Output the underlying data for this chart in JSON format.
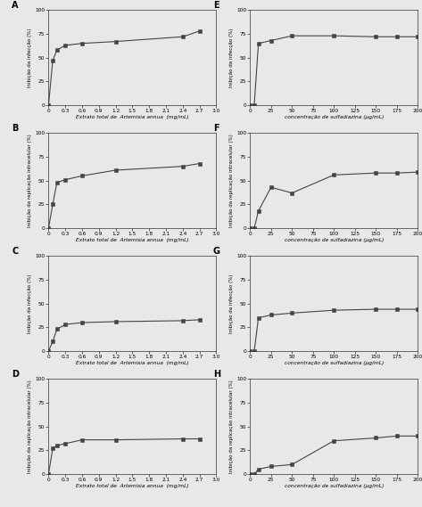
{
  "panels": [
    {
      "label": "A",
      "ylabel": "Inibição da infecção (%)",
      "xlabel": "Extrato total de  Artemisia annua  (mg/mL)",
      "x": [
        0.0,
        0.075,
        0.15,
        0.3,
        0.6,
        1.2,
        2.4,
        2.7
      ],
      "y": [
        0,
        47,
        58,
        63,
        65,
        67,
        72,
        78
      ],
      "xticks": [
        0.0,
        0.3,
        0.6,
        0.9,
        1.2,
        1.5,
        1.8,
        2.1,
        2.4,
        2.7,
        3.0
      ],
      "xtick_labels": [
        "0",
        "0.3",
        "0.6",
        "0.9",
        "1.2",
        "1.5",
        "1.8",
        "2.1",
        "2.4",
        "2.7",
        "3.0"
      ],
      "yticks": [
        0,
        25,
        50,
        75,
        100
      ],
      "xlim": [
        0,
        3.0
      ],
      "ylim": [
        0,
        100
      ]
    },
    {
      "label": "B",
      "ylabel": "Inibição da replicação intracelular (%)",
      "xlabel": "Extrato total de  Artemisia annua  (mg/mL)",
      "x": [
        0.0,
        0.075,
        0.15,
        0.3,
        0.6,
        1.2,
        2.4,
        2.7
      ],
      "y": [
        0,
        25,
        48,
        51,
        55,
        61,
        65,
        68
      ],
      "xticks": [
        0.0,
        0.3,
        0.6,
        0.9,
        1.2,
        1.5,
        1.8,
        2.1,
        2.4,
        2.7,
        3.0
      ],
      "xtick_labels": [
        "0",
        "0.3",
        "0.6",
        "0.9",
        "1.2",
        "1.5",
        "1.8",
        "2.1",
        "2.4",
        "2.7",
        "3.0"
      ],
      "yticks": [
        0,
        25,
        50,
        75,
        100
      ],
      "xlim": [
        0,
        3.0
      ],
      "ylim": [
        0,
        100
      ]
    },
    {
      "label": "C",
      "ylabel": "Inibição da infecção (%)",
      "xlabel": "Extrato total de  Artemisia annua  (mg/mL)",
      "x": [
        0.0,
        0.075,
        0.15,
        0.3,
        0.6,
        1.2,
        2.4,
        2.7
      ],
      "y": [
        0,
        10,
        23,
        28,
        30,
        31,
        32,
        33
      ],
      "xticks": [
        0.0,
        0.3,
        0.6,
        0.9,
        1.2,
        1.5,
        1.8,
        2.1,
        2.4,
        2.7,
        3.0
      ],
      "xtick_labels": [
        "0",
        "0.3",
        "0.6",
        "0.9",
        "1.2",
        "1.5",
        "1.8",
        "2.1",
        "2.4",
        "2.7",
        "3.0"
      ],
      "yticks": [
        0,
        25,
        50,
        75,
        100
      ],
      "xlim": [
        0,
        3.0
      ],
      "ylim": [
        0,
        100
      ]
    },
    {
      "label": "D",
      "ylabel": "Inibição da replicação intracelular (%)",
      "xlabel": "Extrato total de  Artemisia annua  (mg/mL)",
      "x": [
        0.0,
        0.075,
        0.15,
        0.3,
        0.6,
        1.2,
        2.4,
        2.7
      ],
      "y": [
        0,
        27,
        30,
        32,
        36,
        36,
        37,
        37
      ],
      "xticks": [
        0.0,
        0.3,
        0.6,
        0.9,
        1.2,
        1.5,
        1.8,
        2.1,
        2.4,
        2.7,
        3.0
      ],
      "xtick_labels": [
        "0",
        "0.3",
        "0.6",
        "0.9",
        "1.2",
        "1.5",
        "1.8",
        "2.1",
        "2.4",
        "2.7",
        "3.0"
      ],
      "yticks": [
        0,
        25,
        50,
        75,
        100
      ],
      "xlim": [
        0,
        3.0
      ],
      "ylim": [
        0,
        100
      ]
    },
    {
      "label": "E",
      "ylabel": "Inibição da infecção (%)",
      "xlabel": "concentração de sulfadiazina (µg/mL)",
      "x": [
        0,
        5,
        10,
        25,
        50,
        100,
        150,
        175,
        200
      ],
      "y": [
        0,
        0,
        65,
        68,
        73,
        73,
        72,
        72,
        72
      ],
      "xticks": [
        0,
        25,
        50,
        75,
        100,
        125,
        150,
        175,
        200
      ],
      "xtick_labels": [
        "0",
        "25",
        "50",
        "75",
        "100",
        "125",
        "150",
        "175",
        "200"
      ],
      "yticks": [
        0,
        25,
        50,
        75,
        100
      ],
      "xlim": [
        0,
        200
      ],
      "ylim": [
        0,
        100
      ]
    },
    {
      "label": "F",
      "ylabel": "Inibição da replicação intracelular (%)",
      "xlabel": "concentração de sulfadiazina (µg/mL)",
      "x": [
        0,
        5,
        10,
        25,
        50,
        100,
        150,
        175,
        200
      ],
      "y": [
        0,
        0,
        18,
        43,
        37,
        56,
        58,
        58,
        59
      ],
      "xticks": [
        0,
        25,
        50,
        75,
        100,
        125,
        150,
        175,
        200
      ],
      "xtick_labels": [
        "0",
        "25",
        "50",
        "75",
        "100",
        "125",
        "150",
        "175",
        "200"
      ],
      "yticks": [
        0,
        25,
        50,
        75,
        100
      ],
      "xlim": [
        0,
        200
      ],
      "ylim": [
        0,
        100
      ]
    },
    {
      "label": "G",
      "ylabel": "Inibição da infecção (%)",
      "xlabel": "concentração de sulfadiazina (µg/mL)",
      "x": [
        0,
        5,
        10,
        25,
        50,
        100,
        150,
        175,
        200
      ],
      "y": [
        0,
        0,
        35,
        38,
        40,
        43,
        44,
        44,
        44
      ],
      "xticks": [
        0,
        25,
        50,
        75,
        100,
        125,
        150,
        175,
        200
      ],
      "xtick_labels": [
        "0",
        "25",
        "50",
        "75",
        "100",
        "125",
        "150",
        "175",
        "200"
      ],
      "yticks": [
        0,
        25,
        50,
        75,
        100
      ],
      "xlim": [
        0,
        200
      ],
      "ylim": [
        0,
        100
      ]
    },
    {
      "label": "H",
      "ylabel": "Inibição da replicação intracelular (%)",
      "xlabel": "concentração de sulfadiazina (µg/mL)",
      "x": [
        0,
        5,
        10,
        25,
        50,
        100,
        150,
        175,
        200
      ],
      "y": [
        0,
        0,
        5,
        8,
        10,
        35,
        38,
        40,
        40
      ],
      "xticks": [
        0,
        25,
        50,
        75,
        100,
        125,
        150,
        175,
        200
      ],
      "xtick_labels": [
        "0",
        "25",
        "50",
        "75",
        "100",
        "125",
        "150",
        "175",
        "200"
      ],
      "yticks": [
        0,
        25,
        50,
        75,
        100
      ],
      "xlim": [
        0,
        200
      ],
      "ylim": [
        0,
        100
      ]
    }
  ],
  "background_color": "#e8e8e8",
  "plot_bg_color": "#e8e8e8",
  "line_color": "#444444",
  "marker": "s",
  "markersize": 2.5,
  "linewidth": 0.8,
  "label_fontsize": 4.2,
  "tick_fontsize": 4.2,
  "panel_label_fontsize": 7,
  "ylabel_fontsize": 4.0,
  "xlabel_fontsize": 4.2
}
